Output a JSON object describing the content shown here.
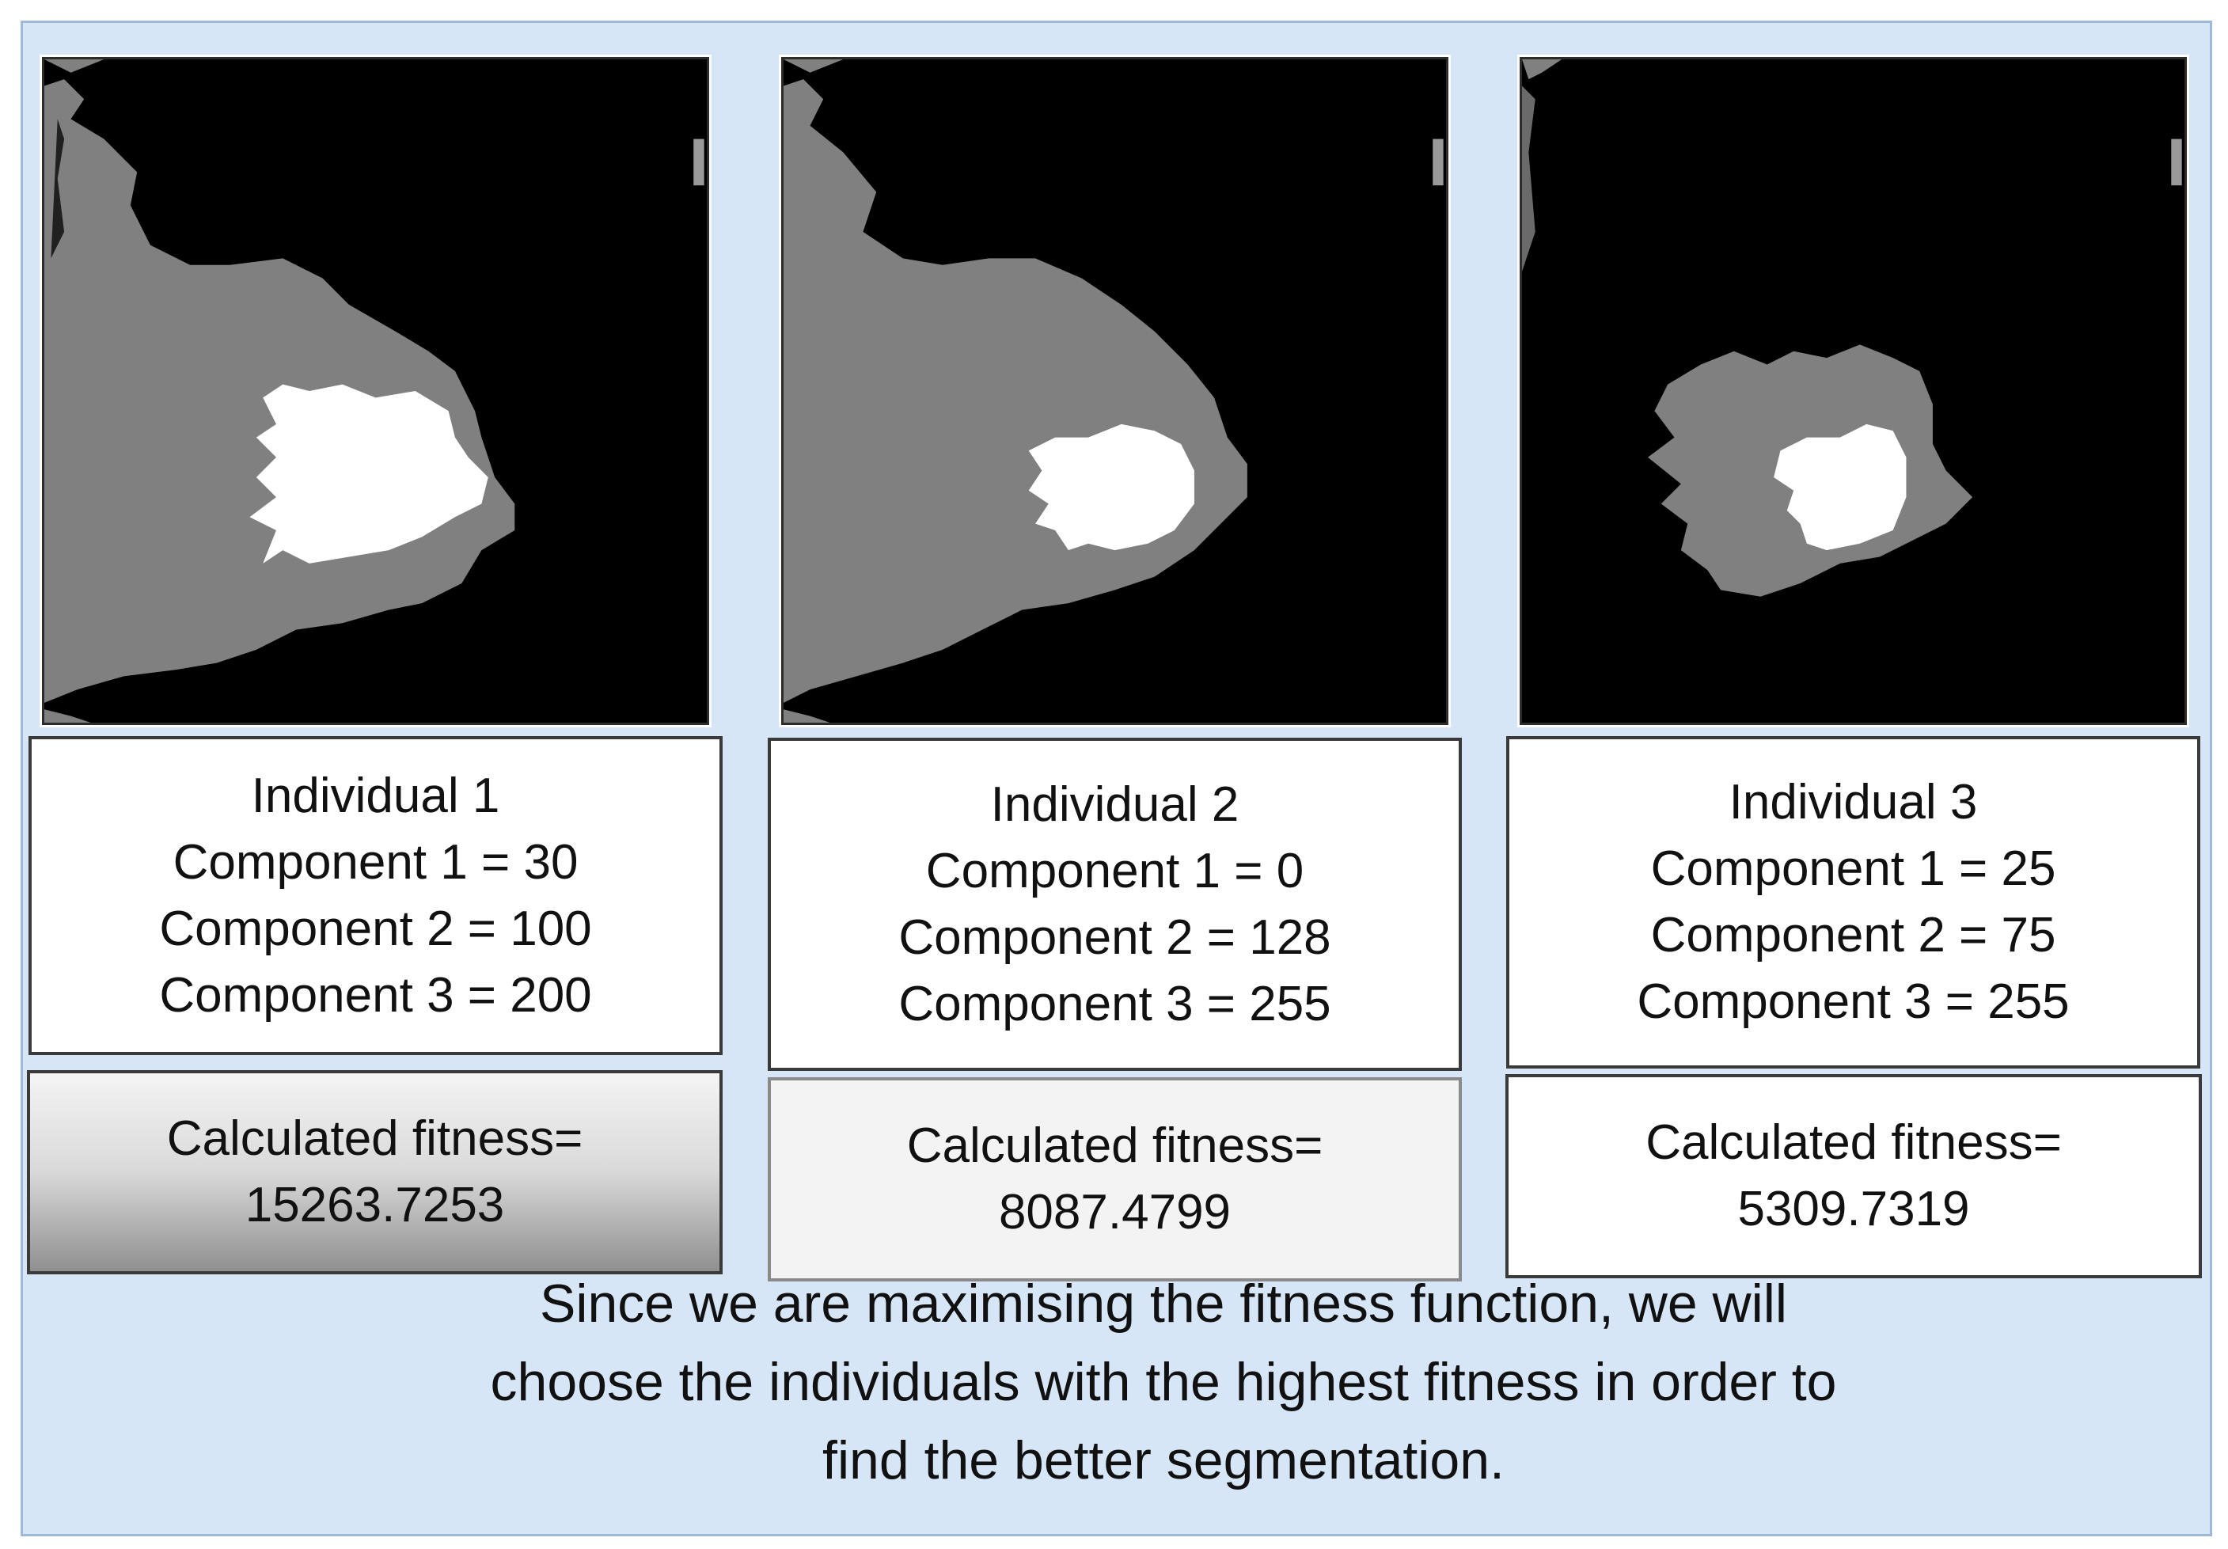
{
  "individuals": [
    {
      "name": "Individual 1",
      "component1": "Component 1 = 30",
      "component2": "Component 2 = 100",
      "component3": "Component 3 = 200",
      "fitness_label": "Calculated fitness=",
      "fitness_value": "15263.7253"
    },
    {
      "name": "Individual 2",
      "component1": "Component 1 = 0",
      "component2": "Component 2 = 128",
      "component3": "Component 3 = 255",
      "fitness_label": "Calculated fitness=",
      "fitness_value": "8087.4799"
    },
    {
      "name": "Individual 3",
      "component1": "Component 1 = 25",
      "component2": "Component 2 = 75",
      "component3": "Component 3 = 255",
      "fitness_label": "Calculated fitness=",
      "fitness_value": "5309.7319"
    }
  ],
  "caption": {
    "line1": "Since we are maximising the fitness function, we will",
    "line2": "choose the individuals with the highest fitness in order to",
    "line3": "find the better segmentation."
  },
  "colors": {
    "panel_background": "#d6e6f7",
    "panel_border": "#9fbad8",
    "segment_black": "#000000",
    "segment_gray": "#808080",
    "segment_white": "#ffffff"
  }
}
